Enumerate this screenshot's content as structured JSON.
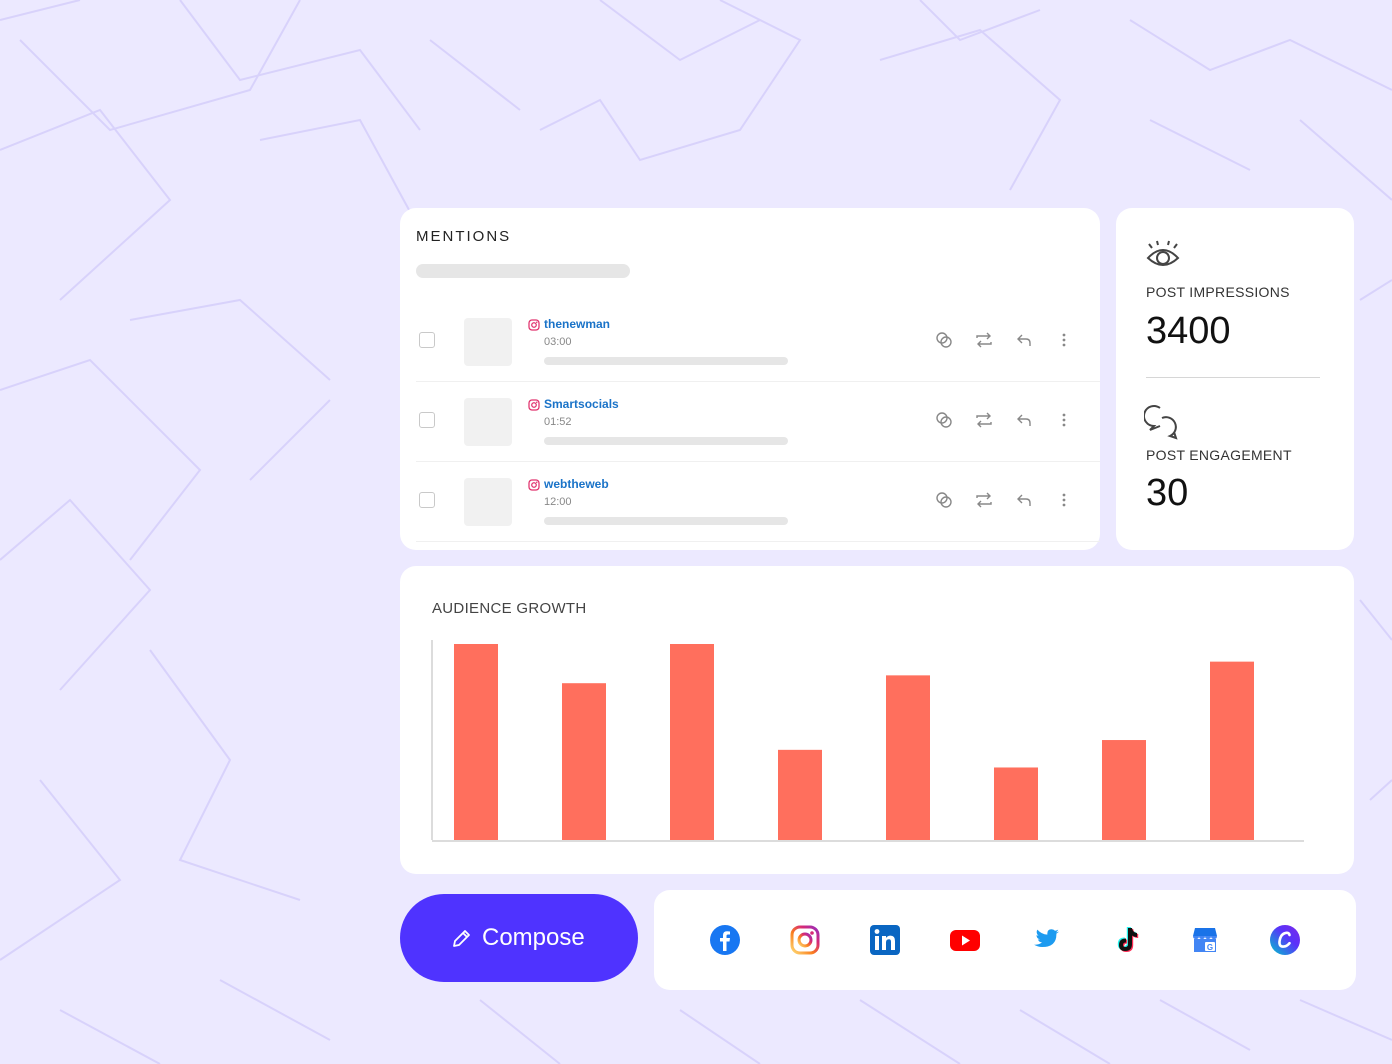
{
  "colors": {
    "background": "#ece9ff",
    "accent": "#4f33ff",
    "bar": "#ff6f5d",
    "handle": "#1a73c8"
  },
  "mentions": {
    "title": "MENTIONS",
    "items": [
      {
        "platform": "instagram-icon",
        "handle": "thenewman",
        "time": "03:00"
      },
      {
        "platform": "instagram-icon",
        "handle": "Smartsocials",
        "time": "01:52"
      },
      {
        "platform": "instagram-icon",
        "handle": "webtheweb",
        "time": "12:00"
      }
    ],
    "actions": [
      "engage-icon",
      "retweet-icon",
      "reply-icon",
      "more-icon"
    ]
  },
  "stats": {
    "impressions": {
      "icon": "eye-icon",
      "label": "POST IMPRESSIONS",
      "value": "3400"
    },
    "engagement": {
      "icon": "chat-bubbles-icon",
      "label": "POST ENGAGEMENT",
      "value": "30"
    }
  },
  "chart_data": {
    "type": "bar",
    "title": "AUDIENCE GROWTH",
    "values": [
      100,
      80,
      100,
      46,
      84,
      37,
      51,
      91
    ],
    "ylim": [
      0,
      100
    ],
    "grid": false,
    "legend": "none"
  },
  "compose": {
    "icon": "pencil-icon",
    "label": "Compose"
  },
  "socials": [
    "facebook-icon",
    "instagram-icon",
    "linkedin-icon",
    "youtube-icon",
    "twitter-icon",
    "tiktok-icon",
    "google-business-icon",
    "canva-icon"
  ]
}
